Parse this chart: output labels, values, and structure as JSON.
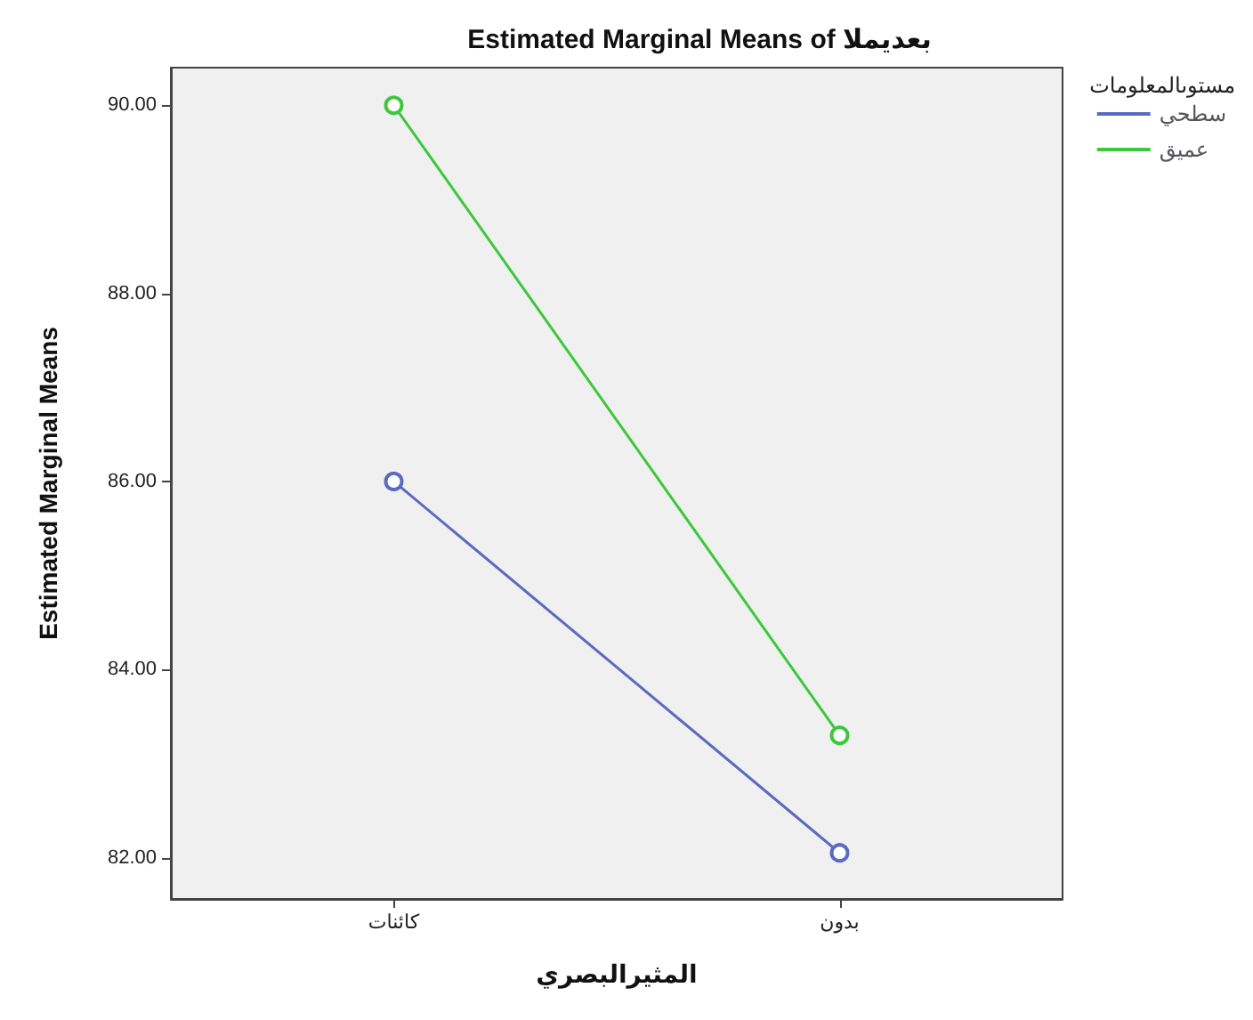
{
  "chart_data": {
    "type": "line",
    "title": "Estimated Marginal Means of بعديملا",
    "xlabel": "المثيرالبصري",
    "ylabel": "Estimated Marginal Means",
    "legend_title": "مستوىالمعلومات",
    "categories": [
      "كائنات",
      "بدون"
    ],
    "series": [
      {
        "name": "سطحي",
        "color": "#5a6bbf",
        "values": [
          86.0,
          82.05
        ]
      },
      {
        "name": "عميق",
        "color": "#3cc83c",
        "values": [
          90.0,
          83.3
        ]
      }
    ],
    "ylim": [
      81.56,
      90.4
    ],
    "yticks": [
      {
        "value": 82,
        "label": "82.00"
      },
      {
        "value": 84,
        "label": "84.00"
      },
      {
        "value": 86,
        "label": "86.00"
      },
      {
        "value": 88,
        "label": "88.00"
      },
      {
        "value": 90,
        "label": "90.00"
      }
    ],
    "grid": false,
    "legend": "right",
    "marker": "circle",
    "line_style": "solid"
  }
}
